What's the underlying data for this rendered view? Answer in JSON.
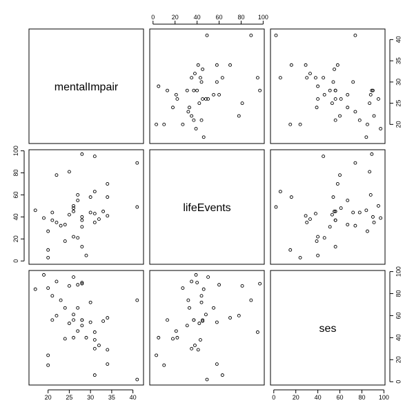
{
  "chart_data": {
    "type": "scatter",
    "variables": [
      {
        "name": "mentalImpair",
        "lim": [
          15.5,
          42.5
        ],
        "ticks": [
          20,
          25,
          30,
          35,
          40
        ]
      },
      {
        "name": "lifeEvents",
        "lim": [
          -3,
          101
        ],
        "ticks": [
          0,
          20,
          40,
          60,
          80,
          100
        ]
      },
      {
        "name": "ses",
        "lim": [
          -3,
          101
        ],
        "ticks": [
          0,
          20,
          40,
          60,
          80,
          100
        ]
      }
    ],
    "observations": [
      {
        "mentalImpair": 17,
        "lifeEvents": 46,
        "ses": 84
      },
      {
        "mentalImpair": 19,
        "lifeEvents": 39,
        "ses": 97
      },
      {
        "mentalImpair": 20,
        "lifeEvents": 3,
        "ses": 24
      },
      {
        "mentalImpair": 20,
        "lifeEvents": 10,
        "ses": 15
      },
      {
        "mentalImpair": 20,
        "lifeEvents": 27,
        "ses": 85
      },
      {
        "mentalImpair": 21,
        "lifeEvents": 44,
        "ses": 78
      },
      {
        "mentalImpair": 21,
        "lifeEvents": 37,
        "ses": 56
      },
      {
        "mentalImpair": 22,
        "lifeEvents": 78,
        "ses": 60
      },
      {
        "mentalImpair": 22,
        "lifeEvents": 35,
        "ses": 91
      },
      {
        "mentalImpair": 23,
        "lifeEvents": 32,
        "ses": 74
      },
      {
        "mentalImpair": 24,
        "lifeEvents": 33,
        "ses": 67
      },
      {
        "mentalImpair": 24,
        "lifeEvents": 18,
        "ses": 39
      },
      {
        "mentalImpair": 25,
        "lifeEvents": 81,
        "ses": 87
      },
      {
        "mentalImpair": 25,
        "lifeEvents": 42,
        "ses": 53
      },
      {
        "mentalImpair": 26,
        "lifeEvents": 50,
        "ses": 95
      },
      {
        "mentalImpair": 26,
        "lifeEvents": 48,
        "ses": 61
      },
      {
        "mentalImpair": 26,
        "lifeEvents": 45,
        "ses": 56
      },
      {
        "mentalImpair": 26,
        "lifeEvents": 22,
        "ses": 40
      },
      {
        "mentalImpair": 27,
        "lifeEvents": 60,
        "ses": 88
      },
      {
        "mentalImpair": 27,
        "lifeEvents": 55,
        "ses": 67
      },
      {
        "mentalImpair": 27,
        "lifeEvents": 21,
        "ses": 46
      },
      {
        "mentalImpair": 28,
        "lifeEvents": 97,
        "ses": 89
      },
      {
        "mentalImpair": 28,
        "lifeEvents": 40,
        "ses": 90
      },
      {
        "mentalImpair": 28,
        "lifeEvents": 37,
        "ses": 56
      },
      {
        "mentalImpair": 28,
        "lifeEvents": 31,
        "ses": 51
      },
      {
        "mentalImpair": 28,
        "lifeEvents": 13,
        "ses": 56
      },
      {
        "mentalImpair": 29,
        "lifeEvents": 5,
        "ses": 40
      },
      {
        "mentalImpair": 30,
        "lifeEvents": 44,
        "ses": 72
      },
      {
        "mentalImpair": 30,
        "lifeEvents": 58,
        "ses": 54
      },
      {
        "mentalImpair": 31,
        "lifeEvents": 95,
        "ses": 45
      },
      {
        "mentalImpair": 31,
        "lifeEvents": 35,
        "ses": 30
      },
      {
        "mentalImpair": 31,
        "lifeEvents": 63,
        "ses": 6
      },
      {
        "mentalImpair": 31,
        "lifeEvents": 43,
        "ses": 38
      },
      {
        "mentalImpair": 32,
        "lifeEvents": 38,
        "ses": 33
      },
      {
        "mentalImpair": 33,
        "lifeEvents": 45,
        "ses": 55
      },
      {
        "mentalImpair": 34,
        "lifeEvents": 70,
        "ses": 58
      },
      {
        "mentalImpair": 34,
        "lifeEvents": 58,
        "ses": 16
      },
      {
        "mentalImpair": 34,
        "lifeEvents": 41,
        "ses": 29
      },
      {
        "mentalImpair": 41,
        "lifeEvents": 89,
        "ses": 74
      },
      {
        "mentalImpair": 41,
        "lifeEvents": 49,
        "ses": 2
      }
    ]
  }
}
